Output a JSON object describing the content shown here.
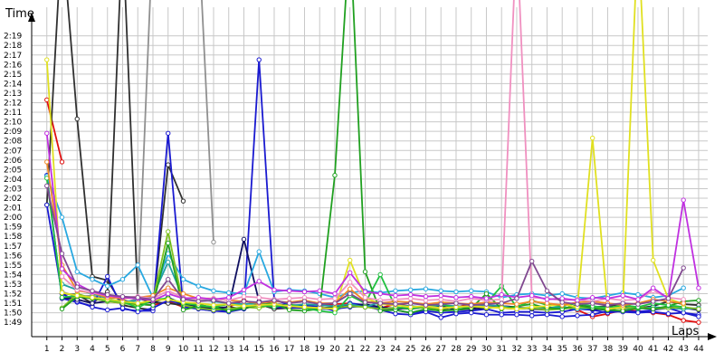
{
  "chart_data": {
    "type": "line",
    "xlabel": "Laps",
    "ylabel": "Time",
    "x": [
      1,
      2,
      3,
      4,
      5,
      6,
      7,
      8,
      9,
      10,
      11,
      12,
      13,
      14,
      15,
      16,
      17,
      18,
      19,
      20,
      21,
      22,
      23,
      24,
      25,
      26,
      27,
      28,
      29,
      30,
      31,
      32,
      33,
      34,
      35,
      36,
      37,
      38,
      39,
      40,
      41,
      42,
      43,
      44
    ],
    "xlim": [
      0,
      44.6
    ],
    "ylim_seconds": [
      107.5,
      142
    ],
    "yticks": [
      {
        "label": "1:49",
        "s": 109
      },
      {
        "label": "1:50",
        "s": 110
      },
      {
        "label": "1:51",
        "s": 111
      },
      {
        "label": "1:52",
        "s": 112
      },
      {
        "label": "1:53",
        "s": 113
      },
      {
        "label": "1:54",
        "s": 114
      },
      {
        "label": "1:55",
        "s": 115
      },
      {
        "label": "1:56",
        "s": 116
      },
      {
        "label": "1:57",
        "s": 117
      },
      {
        "label": "1:58",
        "s": 118
      },
      {
        "label": "1:59",
        "s": 119
      },
      {
        "label": "2:00",
        "s": 120
      },
      {
        "label": "2:01",
        "s": 121
      },
      {
        "label": "2:02",
        "s": 122
      },
      {
        "label": "2:03",
        "s": 123
      },
      {
        "label": "2:04",
        "s": 124
      },
      {
        "label": "2:05",
        "s": 125
      },
      {
        "label": "2:06",
        "s": 126
      },
      {
        "label": "2:07",
        "s": 127
      },
      {
        "label": "2:08",
        "s": 128
      },
      {
        "label": "2:09",
        "s": 129
      },
      {
        "label": "2:10",
        "s": 130
      },
      {
        "label": "2:11",
        "s": 131
      },
      {
        "label": "2:12",
        "s": 132
      },
      {
        "label": "2:13",
        "s": 133
      },
      {
        "label": "2:14",
        "s": 134
      },
      {
        "label": "2:15",
        "s": 135
      },
      {
        "label": "2:16",
        "s": 136
      },
      {
        "label": "2:17",
        "s": 137
      },
      {
        "label": "2:18",
        "s": 138
      },
      {
        "label": "2:19",
        "s": 139
      }
    ],
    "xtick_labels": [
      "1",
      "2",
      "3",
      "4",
      "5",
      "6",
      "7",
      "8",
      "9",
      "10",
      "11",
      "12",
      "13",
      "14",
      "15",
      "16",
      "17",
      "18",
      "19",
      "20",
      "21",
      "22",
      "23",
      "24",
      "25",
      "26",
      "27",
      "28",
      "29",
      "30",
      "31",
      "32",
      "33",
      "34",
      "35",
      "36",
      "37",
      "38",
      "39",
      "40",
      "41",
      "42",
      "43",
      "44"
    ],
    "grid": true,
    "series": [
      {
        "color": "#e01010",
        "values": [
          132.3,
          125.8,
          null,
          null,
          null,
          null,
          null,
          null,
          null,
          null,
          null,
          null,
          null,
          null,
          null,
          null,
          null,
          null,
          null,
          null,
          null,
          null,
          null,
          null,
          null,
          null,
          null,
          null,
          null,
          null,
          null,
          null,
          null,
          null,
          null,
          null,
          null,
          null,
          null,
          null,
          null,
          null,
          null,
          null
        ]
      },
      {
        "color": "#e01010",
        "values": [
          null,
          111.5,
          111.8,
          111.5,
          111.2,
          111.0,
          110.9,
          110.8,
          111.2,
          110.6,
          110.7,
          110.4,
          110.6,
          111.3,
          110.8,
          110.5,
          110.7,
          110.6,
          110.7,
          110.9,
          111.0,
          110.6,
          110.5,
          110.9,
          110.7,
          110.5,
          110.8,
          110.6,
          110.9,
          110.5,
          110.7,
          110.6,
          110.5,
          110.4,
          110.6,
          110.3,
          109.6,
          109.9,
          110.3,
          110.2,
          110.0,
          109.8,
          109.2,
          109.0
        ]
      },
      {
        "color": "#303030",
        "values": [
          121.3,
          150,
          130.3,
          113.8,
          113.4,
          110.8,
          110.5,
          110.3,
          125.5,
          121.7,
          null,
          null,
          null,
          null,
          null,
          null,
          null,
          null,
          null,
          null,
          null,
          null,
          null,
          null,
          null,
          null,
          null,
          null,
          null,
          null,
          null,
          null,
          null,
          null,
          null,
          null,
          null,
          null,
          null,
          null,
          null,
          null,
          null,
          null
        ]
      },
      {
        "color": "#303030",
        "values": [
          null,
          112.0,
          111.9,
          111.0,
          112.2,
          150,
          111.5,
          111.1,
          111.0,
          110.8,
          110.9,
          110.5,
          110.6,
          110.4,
          110.9,
          110.4,
          110.5,
          110.5,
          110.4,
          110.6,
          110.9,
          110.6,
          110.5,
          110.5,
          110.4,
          110.6,
          110.3,
          110.6,
          110.5,
          110.8,
          110.5,
          110.4,
          110.5,
          110.6,
          110.4,
          110.8,
          110.6,
          110.7,
          110.9,
          110.5,
          110.7,
          111.2,
          110.9,
          110.8
        ]
      },
      {
        "color": "#909090",
        "values": [
          null,
          112.2,
          111.7,
          111.8,
          111.3,
          111.0,
          111.5,
          150,
          150,
          150,
          150,
          117.4,
          null,
          null,
          null,
          null,
          null,
          null,
          null,
          null,
          null,
          null,
          null,
          null,
          null,
          null,
          null,
          null,
          null,
          null,
          null,
          null,
          null,
          null,
          null,
          null,
          null,
          null,
          null,
          null,
          null,
          null,
          null,
          null
        ]
      },
      {
        "color": "#1a1ad0",
        "values": [
          124.4,
          111.5,
          111.1,
          110.7,
          113.8,
          110.4,
          110.2,
          110.2,
          128.8,
          110.6,
          110.4,
          110.2,
          110.1,
          110.4,
          136.5,
          111.4,
          110.8,
          110.8,
          110.6,
          110.2,
          111.0,
          110.8,
          110.4,
          110.3,
          110.0,
          110.2,
          110.0,
          110.1,
          110.2,
          110.4,
          110.0,
          110.1,
          110.1,
          110.0,
          110.1,
          110.4,
          110.3,
          110.0,
          110.2,
          110.1,
          110.3,
          110.5,
          110.0,
          109.8
        ]
      },
      {
        "color": "#1a1ad0",
        "values": [
          121.3,
          112.0,
          111.2,
          110.6,
          110.3,
          110.5,
          110.1,
          110.5,
          111.3,
          110.9,
          110.4,
          110.2,
          110.3,
          110.5,
          110.8,
          110.6,
          110.5,
          110.6,
          110.4,
          110.4,
          110.6,
          110.7,
          110.3,
          109.9,
          109.8,
          110.1,
          109.5,
          109.9,
          110.0,
          109.8,
          109.8,
          109.8,
          109.7,
          109.8,
          109.6,
          109.7,
          109.8,
          110.2,
          110.1,
          110.0,
          110.1,
          109.9,
          110.0,
          109.6
        ]
      },
      {
        "color": "#101060",
        "values": [
          null,
          111.6,
          111.4,
          111.0,
          111.2,
          111.3,
          111.0,
          111.1,
          111.6,
          110.9,
          110.6,
          110.4,
          110.6,
          117.7,
          111.2,
          110.9,
          110.8,
          110.6,
          110.5,
          110.6,
          110.7,
          110.9,
          110.6,
          110.4,
          110.5,
          110.6,
          110.7,
          110.3,
          110.4,
          110.5,
          110.7,
          110.6,
          110.4,
          110.3,
          110.5,
          110.6,
          110.4,
          110.3,
          110.6,
          110.5,
          110.4,
          110.6,
          110.5,
          110.3
        ]
      },
      {
        "color": "#28a8e0",
        "values": [
          124.3,
          120.0,
          114.3,
          113.5,
          112.8,
          113.5,
          115.0,
          111.6,
          116.2,
          113.5,
          112.8,
          112.3,
          112.1,
          112.0,
          116.4,
          112.2,
          112.4,
          112.3,
          112.0,
          111.6,
          112.1,
          112.3,
          112.1,
          112.3,
          112.4,
          112.5,
          112.3,
          112.2,
          112.3,
          112.2,
          111.6,
          111.9,
          112.0,
          111.8,
          112.0,
          111.6,
          111.5,
          111.8,
          112.1,
          111.9,
          111.6,
          111.8,
          112.6,
          null
        ]
      },
      {
        "color": "#20a0a0",
        "values": [
          null,
          113.0,
          112.4,
          112.0,
          111.5,
          111.1,
          111.3,
          111.8,
          115.3,
          111.5,
          111.4,
          111.2,
          111.0,
          110.9,
          111.0,
          110.8,
          110.7,
          110.9,
          110.8,
          110.7,
          110.9,
          110.6,
          111.1,
          110.8,
          110.7,
          110.6,
          110.8,
          110.7,
          110.6,
          110.8,
          110.7,
          110.5,
          110.6,
          110.5,
          110.6,
          110.4,
          110.5,
          110.6,
          110.5,
          110.4,
          110.6,
          110.5,
          110.4,
          110.5
        ]
      },
      {
        "color": "#80c020",
        "values": [
          null,
          110.5,
          112.0,
          111.5,
          111.2,
          111.0,
          110.8,
          111.3,
          118.5,
          110.8,
          110.5,
          110.3,
          110.4,
          110.6,
          110.5,
          110.9,
          110.7,
          110.6,
          110.5,
          110.5,
          110.7,
          110.6,
          110.4,
          110.5,
          110.6,
          110.5,
          110.4,
          110.6,
          110.7,
          110.5,
          110.6,
          110.4,
          110.5,
          110.3,
          110.4,
          110.6,
          110.5,
          110.4,
          110.5,
          110.6,
          110.4,
          110.5,
          110.6,
          110.4
        ]
      },
      {
        "color": "#20a020",
        "values": [
          null,
          110.4,
          111.7,
          111.5,
          111.4,
          111.2,
          110.9,
          110.8,
          117.3,
          110.3,
          110.7,
          110.6,
          110.2,
          110.5,
          110.8,
          111.0,
          110.3,
          110.2,
          110.4,
          124.4,
          150,
          114.3,
          110.2,
          110.3,
          110.0,
          110.4,
          110.2,
          110.3,
          110.5,
          112.0,
          110.4,
          110.7,
          110.9,
          110.5,
          110.4,
          110.8,
          110.5,
          110.3,
          110.2,
          110.5,
          110.4,
          110.7,
          111.2,
          111.3
        ]
      },
      {
        "color": "#20c040",
        "values": [
          124.1,
          111.6,
          111.8,
          111.6,
          111.3,
          111.2,
          110.5,
          111.4,
          111.5,
          111.0,
          110.8,
          110.6,
          110.9,
          110.7,
          110.8,
          110.6,
          110.9,
          110.5,
          110.2,
          110.0,
          111.8,
          111.0,
          114.0,
          110.6,
          110.4,
          110.7,
          110.9,
          110.5,
          110.7,
          111.0,
          112.8,
          110.6,
          111.3,
          110.8,
          110.7,
          111.0,
          110.7,
          110.5,
          110.8,
          110.6,
          111.0,
          110.8,
          110.6,
          null
        ]
      },
      {
        "color": "#e0e020",
        "values": [
          136.5,
          112.1,
          111.8,
          111.6,
          111.4,
          111.2,
          111.0,
          111.3,
          111.4,
          111.1,
          111.0,
          110.8,
          110.9,
          110.7,
          110.8,
          110.9,
          110.7,
          110.6,
          110.5,
          110.4,
          115.5,
          111.6,
          110.9,
          110.8,
          110.6,
          110.7,
          110.5,
          110.6,
          110.7,
          110.6,
          110.5,
          110.4,
          110.6,
          110.7,
          110.9,
          110.6,
          128.3,
          110.4,
          110.6,
          150,
          115.5,
          111.5,
          110.9,
          null
        ]
      },
      {
        "color": "#f08828",
        "values": [
          125.8,
          115.0,
          112.3,
          112.1,
          111.6,
          111.5,
          111.6,
          111.8,
          112.6,
          112.0,
          111.5,
          111.5,
          111.3,
          111.2,
          111.0,
          111.2,
          111.1,
          111.3,
          111.0,
          111.0,
          112.5,
          111.2,
          111.0,
          111.2,
          111.1,
          110.9,
          111.1,
          111.0,
          110.9,
          111.1,
          111.0,
          110.9,
          111.2,
          111.0,
          110.8,
          111.1,
          111.2,
          111.0,
          110.8,
          111.0,
          111.4,
          111.2,
          111.0,
          null
        ]
      },
      {
        "color": "#f090c0",
        "values": [
          null,
          113.8,
          112.4,
          112.1,
          111.8,
          111.6,
          111.7,
          111.5,
          112.3,
          111.6,
          111.4,
          111.5,
          111.3,
          111.7,
          111.6,
          111.4,
          111.5,
          111.6,
          111.4,
          111.5,
          113.2,
          111.6,
          111.3,
          111.4,
          111.5,
          111.3,
          111.4,
          111.2,
          111.5,
          111.3,
          111.4,
          150,
          111.6,
          111.5,
          111.3,
          111.4,
          111.2,
          111.5,
          111.3,
          111.4,
          112.3,
          111.6,
          111.4,
          null
        ]
      },
      {
        "color": "#c030e0",
        "values": [
          128.8,
          114.6,
          113.0,
          112.2,
          111.8,
          111.6,
          111.5,
          111.3,
          112.0,
          111.5,
          111.6,
          111.4,
          111.6,
          112.4,
          113.3,
          112.4,
          112.3,
          112.2,
          112.3,
          112.0,
          114.2,
          112.2,
          112.0,
          111.8,
          111.9,
          111.7,
          111.8,
          111.6,
          111.7,
          111.5,
          111.9,
          111.6,
          111.8,
          111.4,
          111.5,
          111.3,
          111.6,
          111.5,
          111.8,
          111.4,
          112.6,
          111.5,
          121.8,
          112.6
        ]
      },
      {
        "color": "#804890",
        "values": [
          123.3,
          116.2,
          112.7,
          112.3,
          111.9,
          111.7,
          111.6,
          111.4,
          113.5,
          111.4,
          111.2,
          111.3,
          111.0,
          111.2,
          111.1,
          111.3,
          111.0,
          111.2,
          110.9,
          111.0,
          112.0,
          111.1,
          111.0,
          110.9,
          111.0,
          110.8,
          110.9,
          111.0,
          110.8,
          110.9,
          111.0,
          111.5,
          115.4,
          112.3,
          111.1,
          110.9,
          111.0,
          110.8,
          111.0,
          110.9,
          111.2,
          111.5,
          114.7,
          null
        ]
      }
    ]
  }
}
